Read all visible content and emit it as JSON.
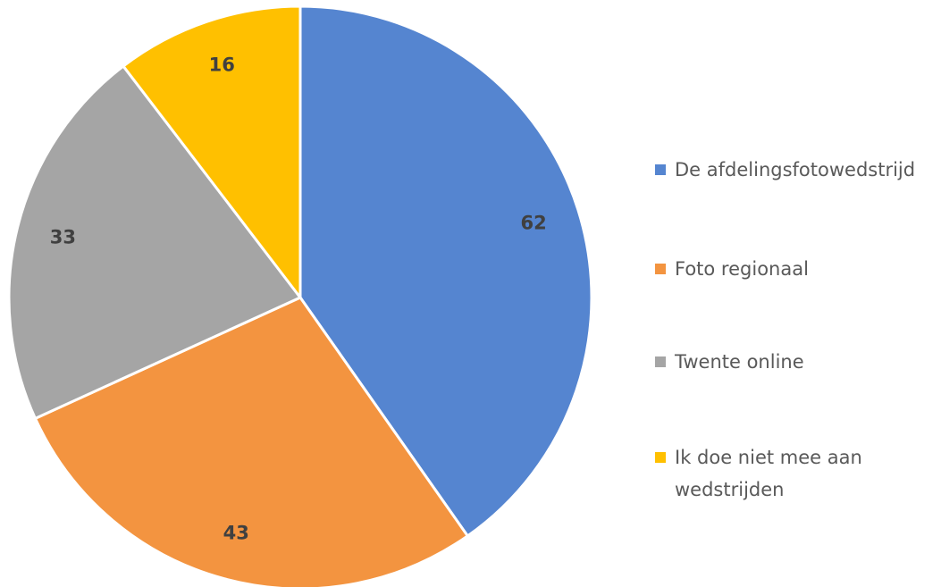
{
  "chart_data": {
    "type": "pie",
    "categories": [
      "De afdelingsfotowedstrijd",
      "Foto regionaal",
      "Twente online",
      "Ik doe niet mee aan wedstrijden"
    ],
    "values": [
      62,
      43,
      33,
      16
    ],
    "colors": [
      "#5585d0",
      "#f39440",
      "#a5a5a5",
      "#ffc000"
    ],
    "legend": "right"
  }
}
